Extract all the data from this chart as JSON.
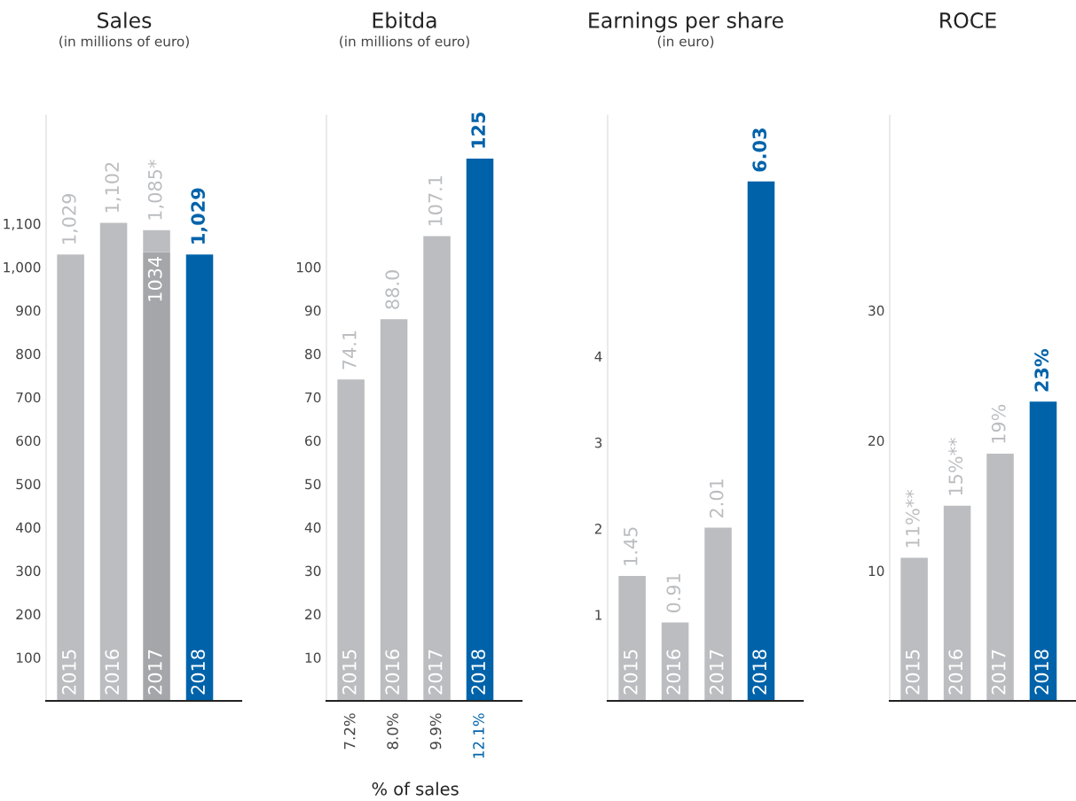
{
  "chart_data": [
    {
      "type": "bar",
      "title": "Sales",
      "subtitle": "(in millions of euro)",
      "stacked": true,
      "categories": [
        "2015",
        "2016",
        "2017",
        "2018"
      ],
      "ylim": [
        0,
        1350
      ],
      "yticks": [
        100,
        200,
        300,
        400,
        500,
        600,
        700,
        800,
        900,
        {
          "value": 1000,
          "label": "1,000"
        },
        {
          "value": 1100,
          "label": "1,100"
        }
      ],
      "series": [
        {
          "colors": [
            "#bbbdc0",
            "#bbbdc0",
            "#a4a6a9",
            "#0063aa"
          ],
          "values": [
            1029,
            1102,
            1034,
            1029
          ],
          "value_labels": [
            null,
            null,
            "1034",
            null
          ]
        },
        {
          "colors": [
            "#bbbdc0",
            "#bbbdc0",
            "#bbbdc0",
            "#bbbdc0"
          ],
          "values": [
            null,
            null,
            51,
            null
          ]
        }
      ],
      "totals": [
        "1,029",
        "1,102",
        "1,085*",
        "1,029"
      ]
    },
    {
      "type": "bar",
      "title": "Ebitda",
      "subtitle": "(in millions of euro)",
      "xlabel": "% of sales",
      "categories": [
        "2015",
        "2016",
        "2017",
        "2018"
      ],
      "ylim": [
        0,
        135
      ],
      "yticks": [
        10,
        20,
        30,
        40,
        50,
        60,
        70,
        80,
        90,
        100
      ],
      "values": [
        74.1,
        88.0,
        107.1,
        125
      ],
      "colors": [
        "#bbbdc0",
        "#bbbdc0",
        "#bbbdc0",
        "#0063aa"
      ],
      "value_labels": [
        "74.1",
        "88.0",
        "107.1",
        "125"
      ],
      "annotations": [
        "7.2%",
        "8.0%",
        "9.9%",
        "12.1%"
      ]
    },
    {
      "type": "bar",
      "title": "Earnings per share",
      "subtitle": "(in euro)",
      "categories": [
        "2015",
        "2016",
        "2017",
        "2018"
      ],
      "ylim": [
        0,
        6.8
      ],
      "yticks": [
        1,
        2,
        3,
        4
      ],
      "values": [
        1.45,
        0.91,
        2.01,
        6.03
      ],
      "colors": [
        "#bbbdc0",
        "#bbbdc0",
        "#bbbdc0",
        "#0063aa"
      ],
      "value_labels": [
        "1.45",
        "0.91",
        "2.01",
        "6.03"
      ]
    },
    {
      "type": "bar",
      "title": "ROCE",
      "categories": [
        "2015",
        "2016",
        "2017",
        "2018"
      ],
      "ylim": [
        0,
        45
      ],
      "yticks": [
        10,
        20,
        30
      ],
      "values": [
        11,
        15,
        19,
        23
      ],
      "colors": [
        "#bbbdc0",
        "#bbbdc0",
        "#bbbdc0",
        "#0063aa"
      ],
      "value_labels": [
        "11%**",
        "15%**",
        "19%",
        "23%"
      ]
    }
  ]
}
